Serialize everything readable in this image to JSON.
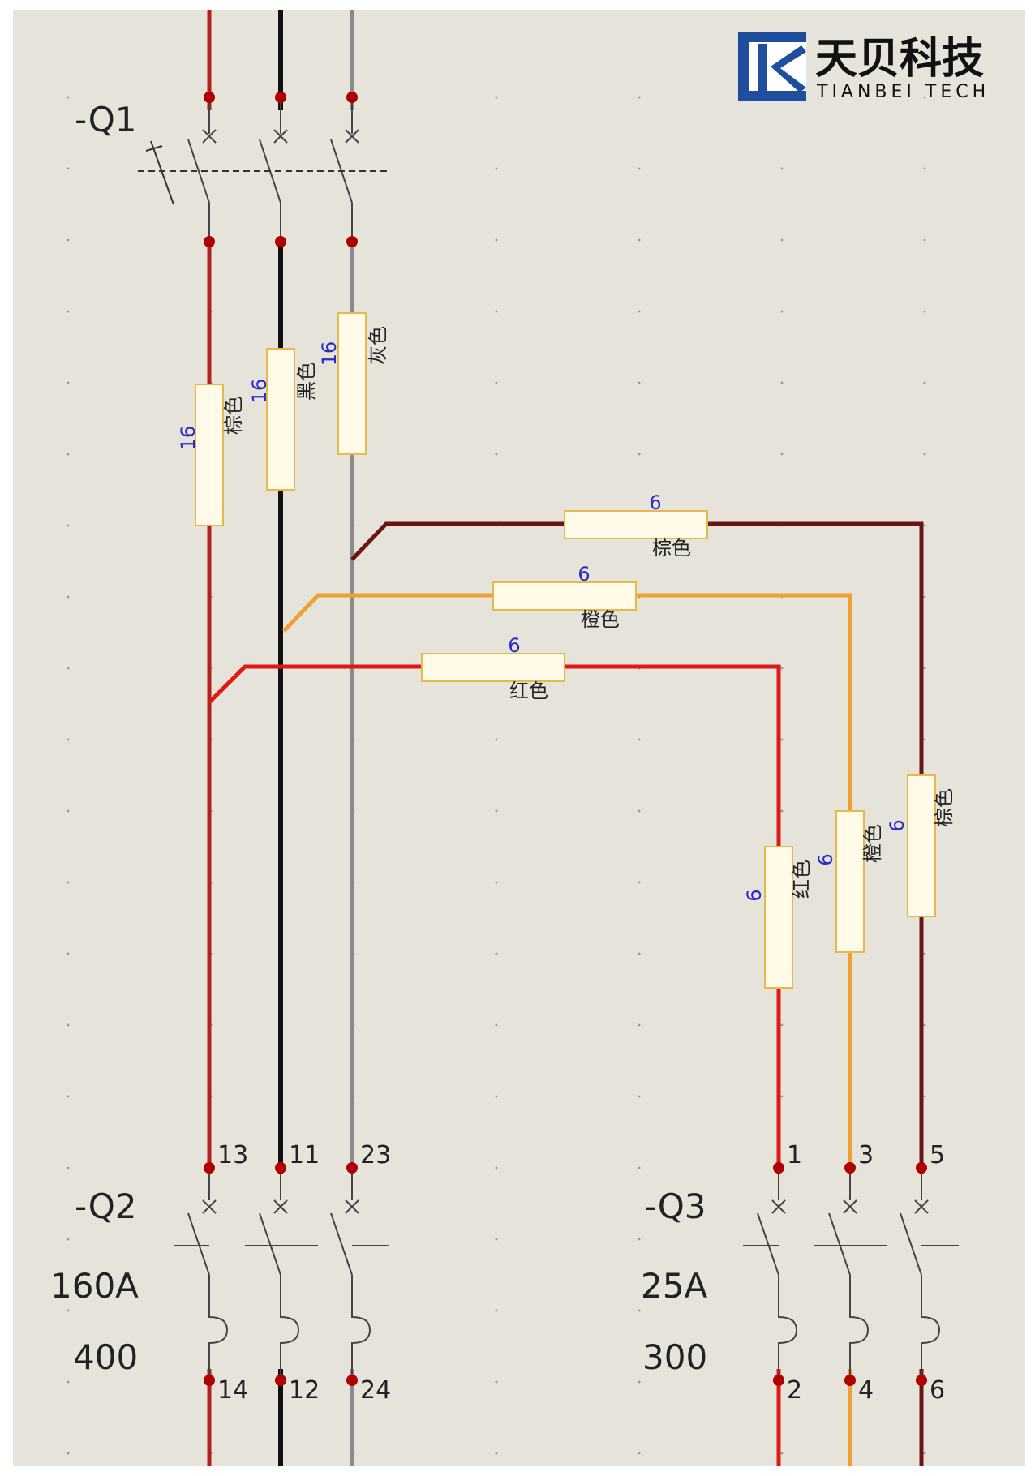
{
  "logo": {
    "name_cn": "天贝科技",
    "name_en": "TIANBEI TECH",
    "color": "#1f4e9e"
  },
  "devices": {
    "q1": {
      "tag": "-Q1"
    },
    "q2": {
      "tag": "-Q2",
      "rating": "160A",
      "setting": "400"
    },
    "q3": {
      "tag": "-Q3",
      "rating": "25A",
      "setting": "300"
    }
  },
  "terminals": {
    "q2_top": [
      "13",
      "11",
      "23"
    ],
    "q2_bottom": [
      "14",
      "12",
      "24"
    ],
    "q3_top": [
      "1",
      "3",
      "5"
    ],
    "q3_bottom": [
      "2",
      "4",
      "6"
    ]
  },
  "wires": [
    {
      "id": "brown-16",
      "cross_section": "16",
      "color_label": "棕色",
      "color": "#b0201d"
    },
    {
      "id": "black-16",
      "cross_section": "16",
      "color_label": "黑色",
      "color": "#111111"
    },
    {
      "id": "grey-16",
      "cross_section": "16",
      "color_label": "灰色",
      "color": "#8a8a8a"
    },
    {
      "id": "brown-6",
      "cross_section": "6",
      "color_label": "棕色",
      "color": "#6b1414"
    },
    {
      "id": "orange-6",
      "cross_section": "6",
      "color_label": "橙色",
      "color": "#f0a030"
    },
    {
      "id": "red-6",
      "cross_section": "6",
      "color_label": "红色",
      "color": "#e01818"
    }
  ],
  "colors": {
    "background": "#e6e3da",
    "terminal_dot": "#b00000",
    "marker_outline": "#e8b84a",
    "marker_fill": "#fffbe8"
  }
}
